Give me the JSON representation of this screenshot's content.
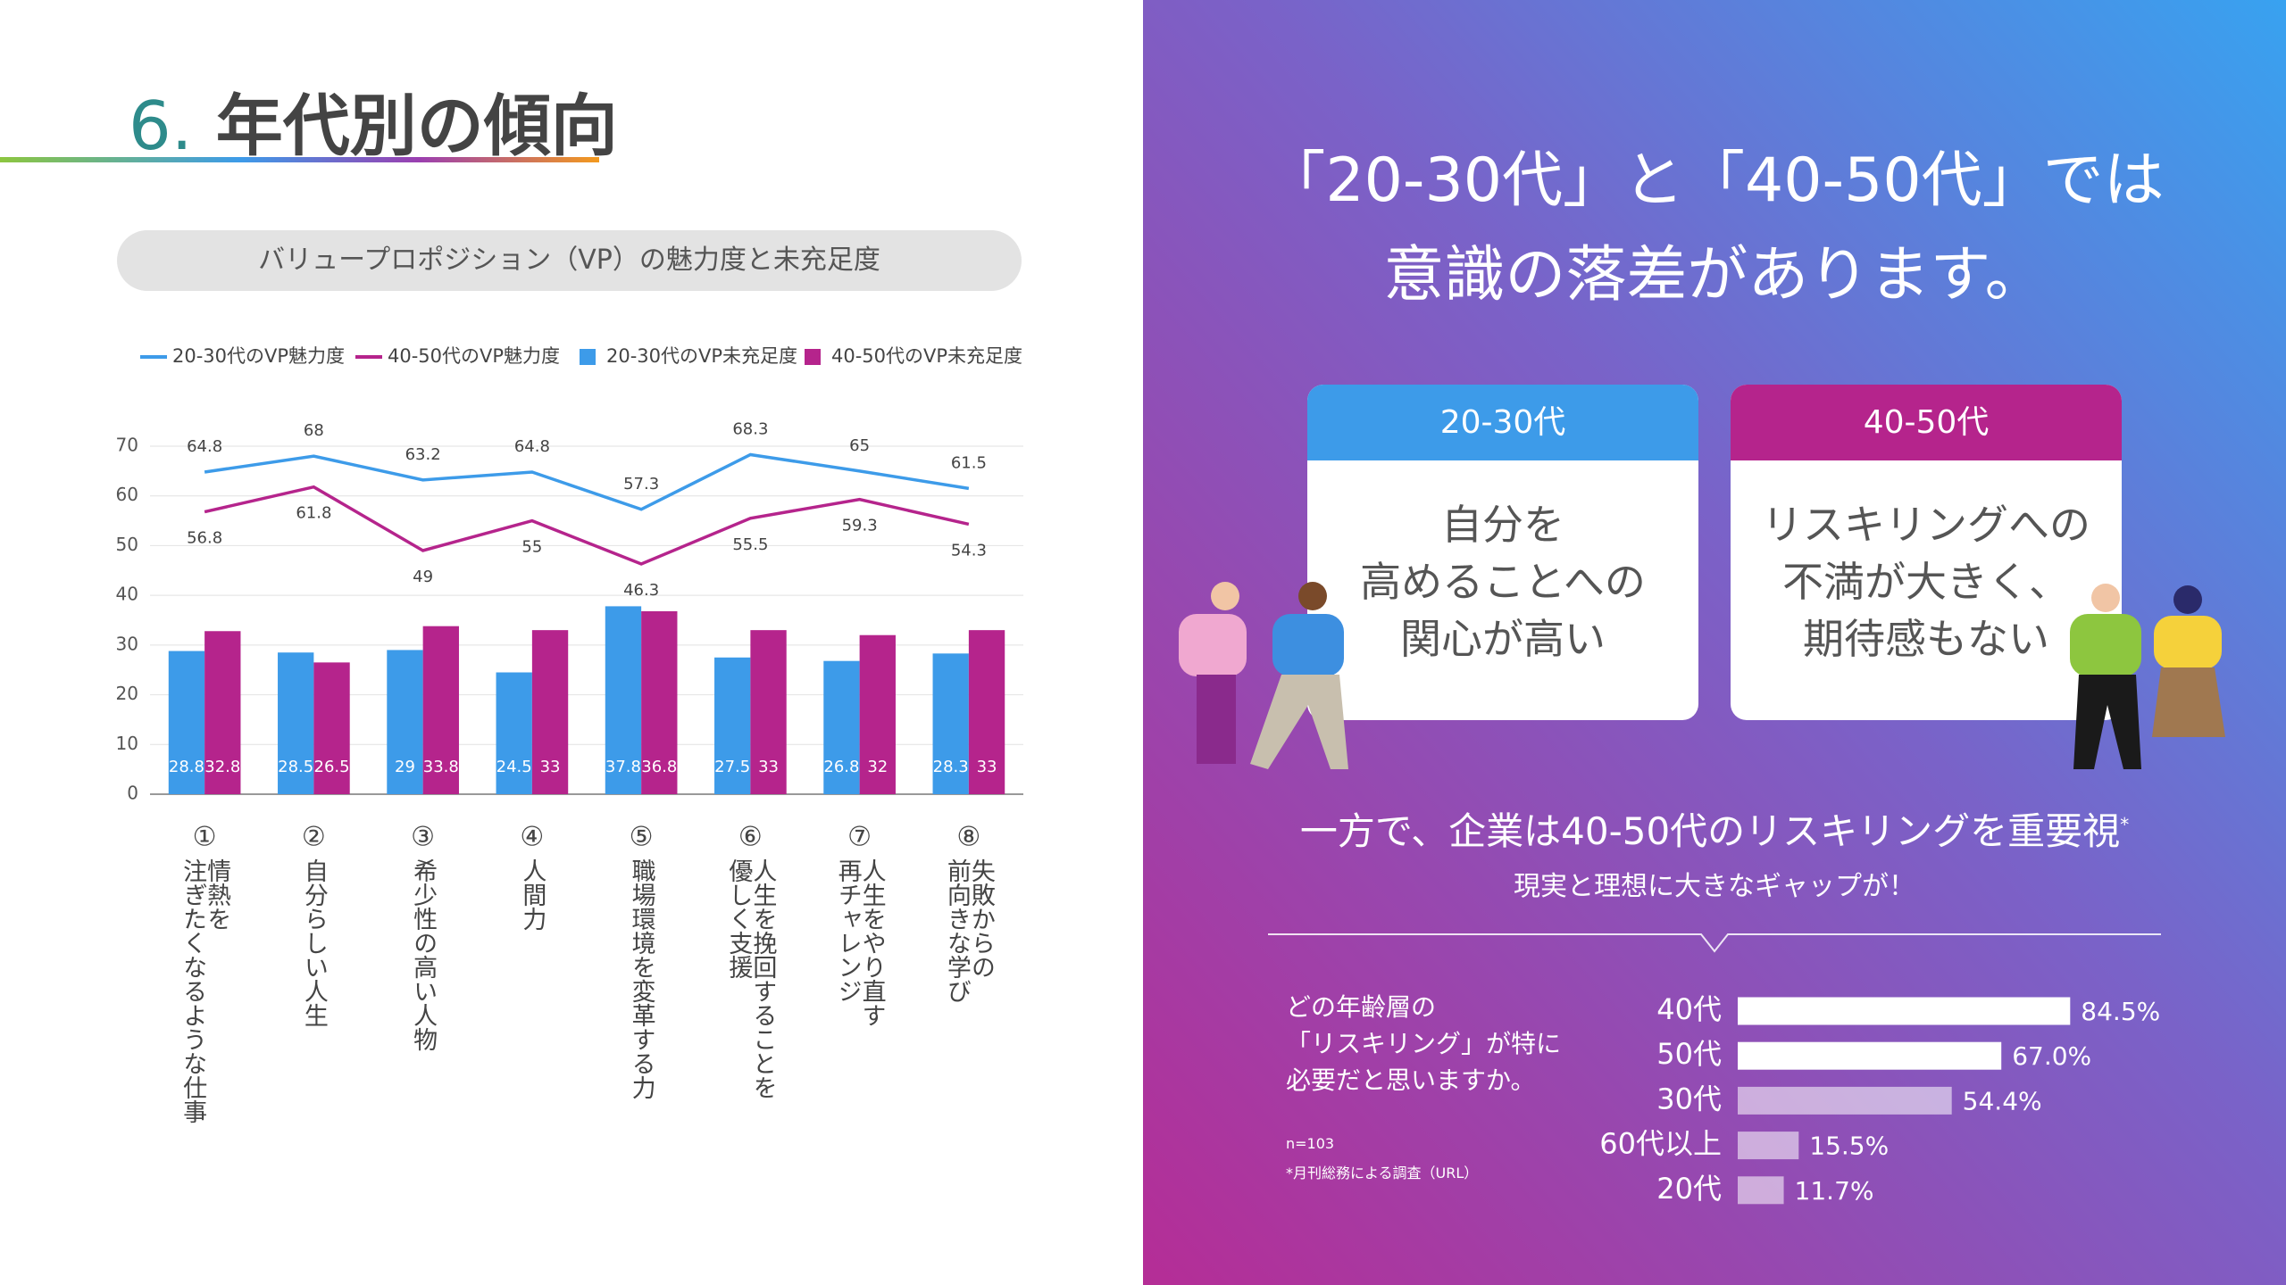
{
  "header": {
    "number": "6.",
    "title": "年代別の傾向"
  },
  "chart_data": [
    {
      "type": "bar",
      "title": "バリュープロポジション（VP）の魅力度と未充足度",
      "category_numbers": [
        "①",
        "②",
        "③",
        "④",
        "⑤",
        "⑥",
        "⑦",
        "⑧"
      ],
      "categories": [
        "情熱を\n注ぎたくなるような仕事",
        "自分らしい人生",
        "希少性の高い人物",
        "人間力",
        "職場環境を変革する力",
        "人生を挽回することを\n優しく支援",
        "人生をやり直す\n再チャレンジ",
        "失敗からの\n前向きな学び"
      ],
      "series": [
        {
          "name": "20-30代のVP魅力度",
          "type": "line",
          "color": "#3d9be9",
          "values": [
            64.8,
            68,
            63.2,
            64.8,
            57.3,
            68.3,
            65,
            61.5
          ]
        },
        {
          "name": "40-50代のVP魅力度",
          "type": "line",
          "color": "#b5248c",
          "values": [
            56.8,
            61.8,
            49,
            55,
            46.3,
            55.5,
            59.3,
            54.3
          ]
        },
        {
          "name": "20-30代のVP未充足度",
          "type": "bar",
          "color": "#3d9be9",
          "values": [
            28.8,
            28.5,
            29,
            24.5,
            37.8,
            27.5,
            26.8,
            28.3
          ]
        },
        {
          "name": "40-50代のVP未充足度",
          "type": "bar",
          "color": "#b5248c",
          "values": [
            32.8,
            26.5,
            33.8,
            33,
            36.8,
            33,
            32,
            33
          ]
        }
      ],
      "ylim": [
        0,
        70
      ],
      "yticks": [
        0,
        10,
        20,
        30,
        40,
        50,
        60,
        70
      ],
      "grid": true,
      "legend": "top"
    },
    {
      "type": "bar",
      "orientation": "horizontal",
      "title": "どの年齢層の\n「リスキリング」が特に\n必要だと思いますか。",
      "categories": [
        "40代",
        "50代",
        "30代",
        "60代以上",
        "20代"
      ],
      "values": [
        84.5,
        67.0,
        54.4,
        15.5,
        11.7
      ],
      "value_labels": [
        "84.5%",
        "67.0%",
        "54.4%",
        "15.5%",
        "11.7%"
      ],
      "colors": [
        "#ffffff",
        "#ffffff",
        "rgba(255,255,255,0.55)",
        "rgba(255,255,255,0.55)",
        "rgba(255,255,255,0.55)"
      ],
      "note": "n=103",
      "source": "*月刊総務による調査（URL）"
    }
  ],
  "panel": {
    "headline": "「20-30代」と「40-50代」では\n意識の落差があります。",
    "cards": [
      {
        "header": "20-30代",
        "body": "自分を\n高めることへの\n関心が高い"
      },
      {
        "header": "40-50代",
        "body": "リスキリングへの\n不満が大きく、\n期待感もない"
      }
    ],
    "statement": "一方で、企業は40-50代のリスキリングを重要視",
    "statement_mark": "*",
    "sub": "現実と理想に大きなギャップが！"
  }
}
